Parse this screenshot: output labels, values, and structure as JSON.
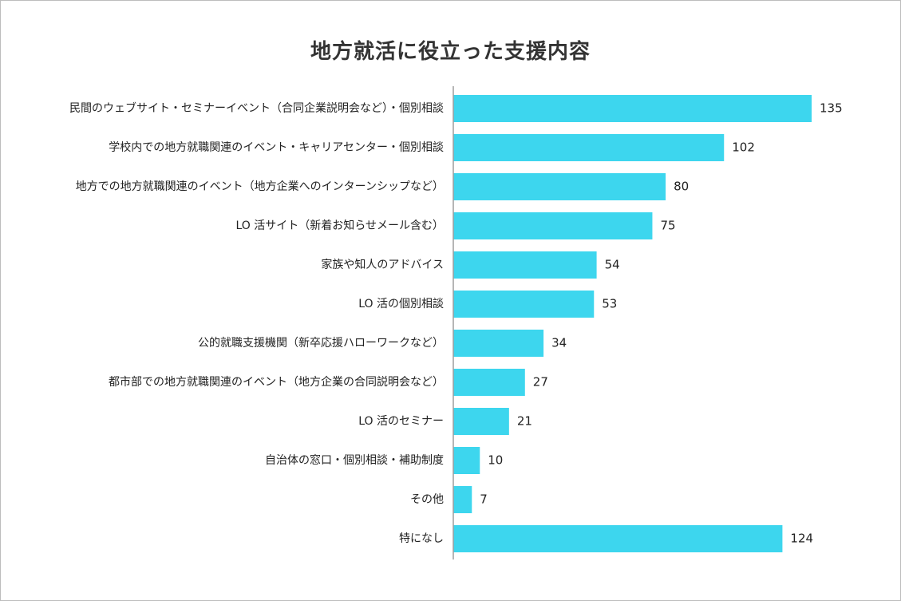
{
  "chart_data": {
    "type": "bar",
    "orientation": "horizontal",
    "title": "地方就活に役立った支援内容",
    "categories": [
      "民間のウェブサイト・セミナーイベント（合同企業説明会など）・個別相談",
      "学校内での地方就職関連のイベント・キャリアセンター・個別相談",
      "地方での地方就職関連のイベント（地方企業へのインターンシップなど）",
      "LO 活サイト（新着お知らせメール含む）",
      "家族や知人のアドバイス",
      "LO 活の個別相談",
      "公的就職支援機関（新卒応援ハローワークなど）",
      "都市部での地方就職関連のイベント（地方企業の合同説明会など）",
      "LO 活のセミナー",
      "自治体の窓口・個別相談・補助制度",
      "その他",
      "特になし"
    ],
    "values": [
      135,
      102,
      80,
      75,
      54,
      53,
      34,
      27,
      21,
      10,
      7,
      124
    ],
    "xlim": [
      0,
      135
    ],
    "bar_color": "#3dd6ee",
    "axis_color": "#9e9e9e",
    "grid": false,
    "legend": "none"
  }
}
